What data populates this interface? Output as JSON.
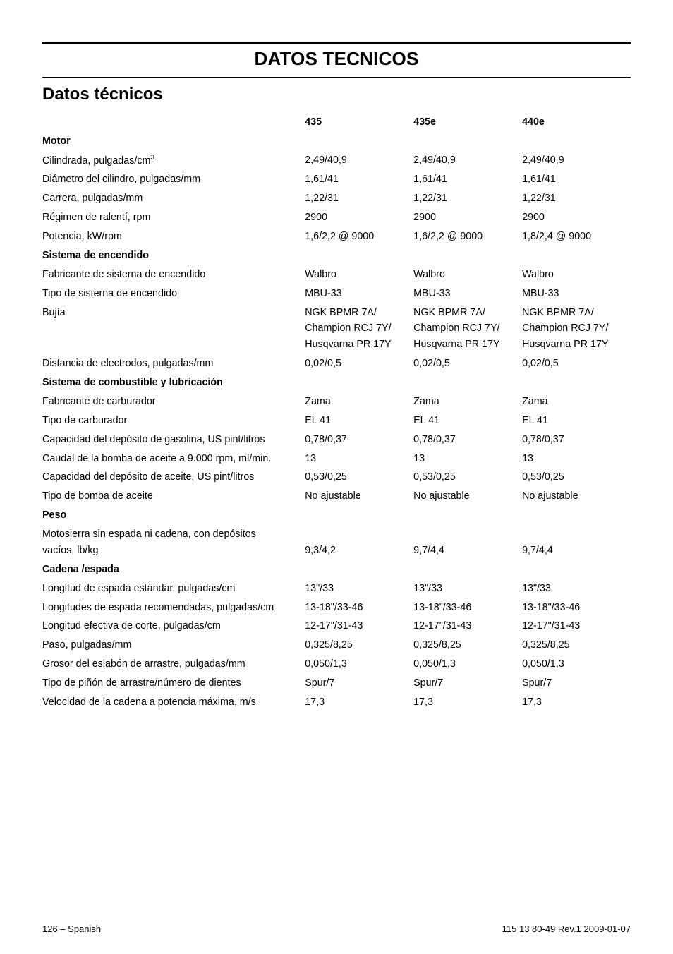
{
  "main_title": "DATOS TECNICOS",
  "sub_title": "Datos técnicos",
  "columns": {
    "h1": "435",
    "h2": "435e",
    "h3": "440e"
  },
  "motor_hdr": "Motor",
  "motor": {
    "r1": {
      "l": "Cilindrada, pulgadas/cm",
      "sup": "3",
      "v1": "2,49/40,9",
      "v2": "2,49/40,9",
      "v3": "2,49/40,9"
    },
    "r2": {
      "l": "Diámetro del cilindro, pulgadas/mm",
      "v1": "1,61/41",
      "v2": "1,61/41",
      "v3": "1,61/41"
    },
    "r3": {
      "l": "Carrera, pulgadas/mm",
      "v1": "1,22/31",
      "v2": "1,22/31",
      "v3": "1,22/31"
    },
    "r4": {
      "l": "Régimen de ralentí, rpm",
      "v1": "2900",
      "v2": "2900",
      "v3": "2900"
    },
    "r5": {
      "l": "Potencia, kW/rpm",
      "v1": "1,6/2,2 @ 9000",
      "v2": "1,6/2,2 @ 9000",
      "v3": "1,8/2,4 @ 9000"
    }
  },
  "ign_hdr": "Sistema de encendido",
  "ign": {
    "r1": {
      "l": "Fabricante de sisterna de encendido",
      "v1": "Walbro",
      "v2": "Walbro",
      "v3": "Walbro"
    },
    "r2": {
      "l": "Tipo de sisterna de encendido",
      "v1": "MBU-33",
      "v2": "MBU-33",
      "v3": "MBU-33"
    },
    "r3": {
      "l": "Bujía",
      "v1a": "NGK BPMR 7A/",
      "v1b": "Champion RCJ 7Y/",
      "v1c": "Husqvarna PR 17Y",
      "v2a": "NGK BPMR 7A/",
      "v2b": "Champion RCJ 7Y/",
      "v2c": "Husqvarna PR 17Y",
      "v3a": "NGK BPMR 7A/",
      "v3b": "Champion RCJ 7Y/",
      "v3c": "Husqvarna PR 17Y"
    },
    "r4": {
      "l": "Distancia de electrodos, pulgadas/mm",
      "v1": "0,02/0,5",
      "v2": "0,02/0,5",
      "v3": "0,02/0,5"
    }
  },
  "fuel_hdr": "Sistema de combustible y lubricación",
  "fuel": {
    "r1": {
      "l": "Fabricante de carburador",
      "v1": "Zama",
      "v2": "Zama",
      "v3": "Zama"
    },
    "r2": {
      "l": "Tipo de carburador",
      "v1": "EL 41",
      "v2": "EL 41",
      "v3": "EL 41"
    },
    "r3": {
      "l": "Capacidad del depósito de gasolina, US pint/litros",
      "v1": "0,78/0,37",
      "v2": "0,78/0,37",
      "v3": "0,78/0,37"
    },
    "r4": {
      "l": "Caudal de la bomba de aceite a 9.000 rpm, ml/min.",
      "v1": "13",
      "v2": "13",
      "v3": "13"
    },
    "r5": {
      "l": "Capacidad del depósito de aceite, US pint/litros",
      "v1": "0,53/0,25",
      "v2": "0,53/0,25",
      "v3": "0,53/0,25"
    },
    "r6": {
      "l": "Tipo de bomba de aceite",
      "v1": "No ajustable",
      "v2": "No ajustable",
      "v3": "No ajustable"
    }
  },
  "weight_hdr": "Peso",
  "weight": {
    "r1": {
      "la": "Motosierra sin espada ni cadena, con depósitos",
      "lb": "vacíos, lb/kg",
      "v1": "9,3/4,2",
      "v2": "9,7/4,4",
      "v3": "9,7/4,4"
    }
  },
  "bar_hdr": "Cadena /espada",
  "bar": {
    "r1": {
      "l": "Longitud de espada estándar, pulgadas/cm",
      "v1": "13\"/33",
      "v2": "13\"/33",
      "v3": "13\"/33"
    },
    "r2": {
      "l": "Longitudes de espada recomendadas, pulgadas/cm",
      "v1": "13-18\"/33-46",
      "v2": "13-18\"/33-46",
      "v3": "13-18\"/33-46"
    },
    "r3": {
      "l": "Longitud efectiva de corte, pulgadas/cm",
      "v1": "12-17\"/31-43",
      "v2": "12-17\"/31-43",
      "v3": "12-17\"/31-43"
    },
    "r4": {
      "l": "Paso, pulgadas/mm",
      "v1": "0,325/8,25",
      "v2": "0,325/8,25",
      "v3": "0,325/8,25"
    },
    "r5": {
      "l": "Grosor del eslabón de arrastre, pulgadas/mm",
      "v1": "0,050/1,3",
      "v2": "0,050/1,3",
      "v3": "0,050/1,3"
    },
    "r6": {
      "l": "Tipo de piñón de arrastre/número de dientes",
      "v1": "Spur/7",
      "v2": "Spur/7",
      "v3": "Spur/7"
    },
    "r7": {
      "l": "Velocidad de la cadena a potencia máxima, m/s",
      "v1": "17,3",
      "v2": "17,3",
      "v3": "17,3"
    }
  },
  "footer": {
    "left": "126 – Spanish",
    "right": "115 13 80-49 Rev.1 2009-01-07"
  }
}
